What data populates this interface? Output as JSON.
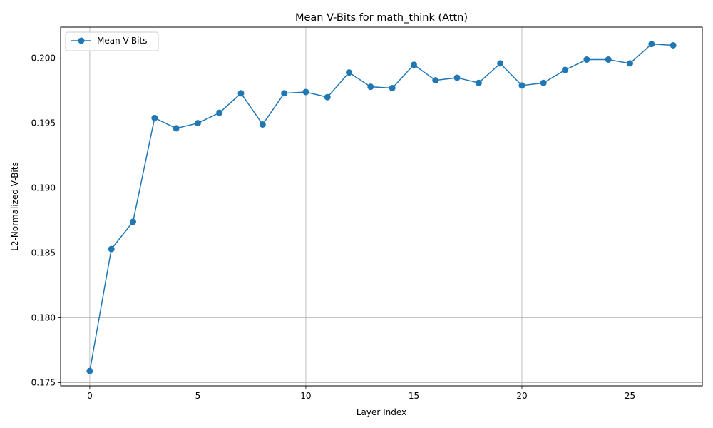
{
  "chart_data": {
    "type": "line",
    "title": "Mean V-Bits for math_think (Attn)",
    "xlabel": "Layer Index",
    "ylabel": "L2-Normalized V-Bits",
    "xlim": [
      -1.35,
      28.35
    ],
    "ylim": [
      0.17475,
      0.2024
    ],
    "xticks": [
      0,
      5,
      10,
      15,
      20,
      25
    ],
    "yticks": [
      0.175,
      0.18,
      0.185,
      0.19,
      0.195,
      0.2
    ],
    "xtick_labels": [
      "0",
      "5",
      "10",
      "15",
      "20",
      "25"
    ],
    "ytick_labels": [
      "0.175",
      "0.180",
      "0.185",
      "0.190",
      "0.195",
      "0.200"
    ],
    "grid": true,
    "legend_position": "upper-left",
    "series": [
      {
        "name": "Mean V-Bits",
        "color": "#1f77b4",
        "marker": "circle",
        "x": [
          0,
          1,
          2,
          3,
          4,
          5,
          6,
          7,
          8,
          9,
          10,
          11,
          12,
          13,
          14,
          15,
          16,
          17,
          18,
          19,
          20,
          21,
          22,
          23,
          24,
          25,
          26,
          27
        ],
        "y": [
          0.1759,
          0.1853,
          0.1874,
          0.1954,
          0.1946,
          0.195,
          0.1958,
          0.1973,
          0.1949,
          0.1973,
          0.1974,
          0.197,
          0.1989,
          0.1978,
          0.1977,
          0.1995,
          0.1983,
          0.1985,
          0.1981,
          0.1996,
          0.1979,
          0.1981,
          0.1991,
          0.1999,
          0.1999,
          0.1996,
          0.2011,
          0.201
        ]
      }
    ]
  }
}
